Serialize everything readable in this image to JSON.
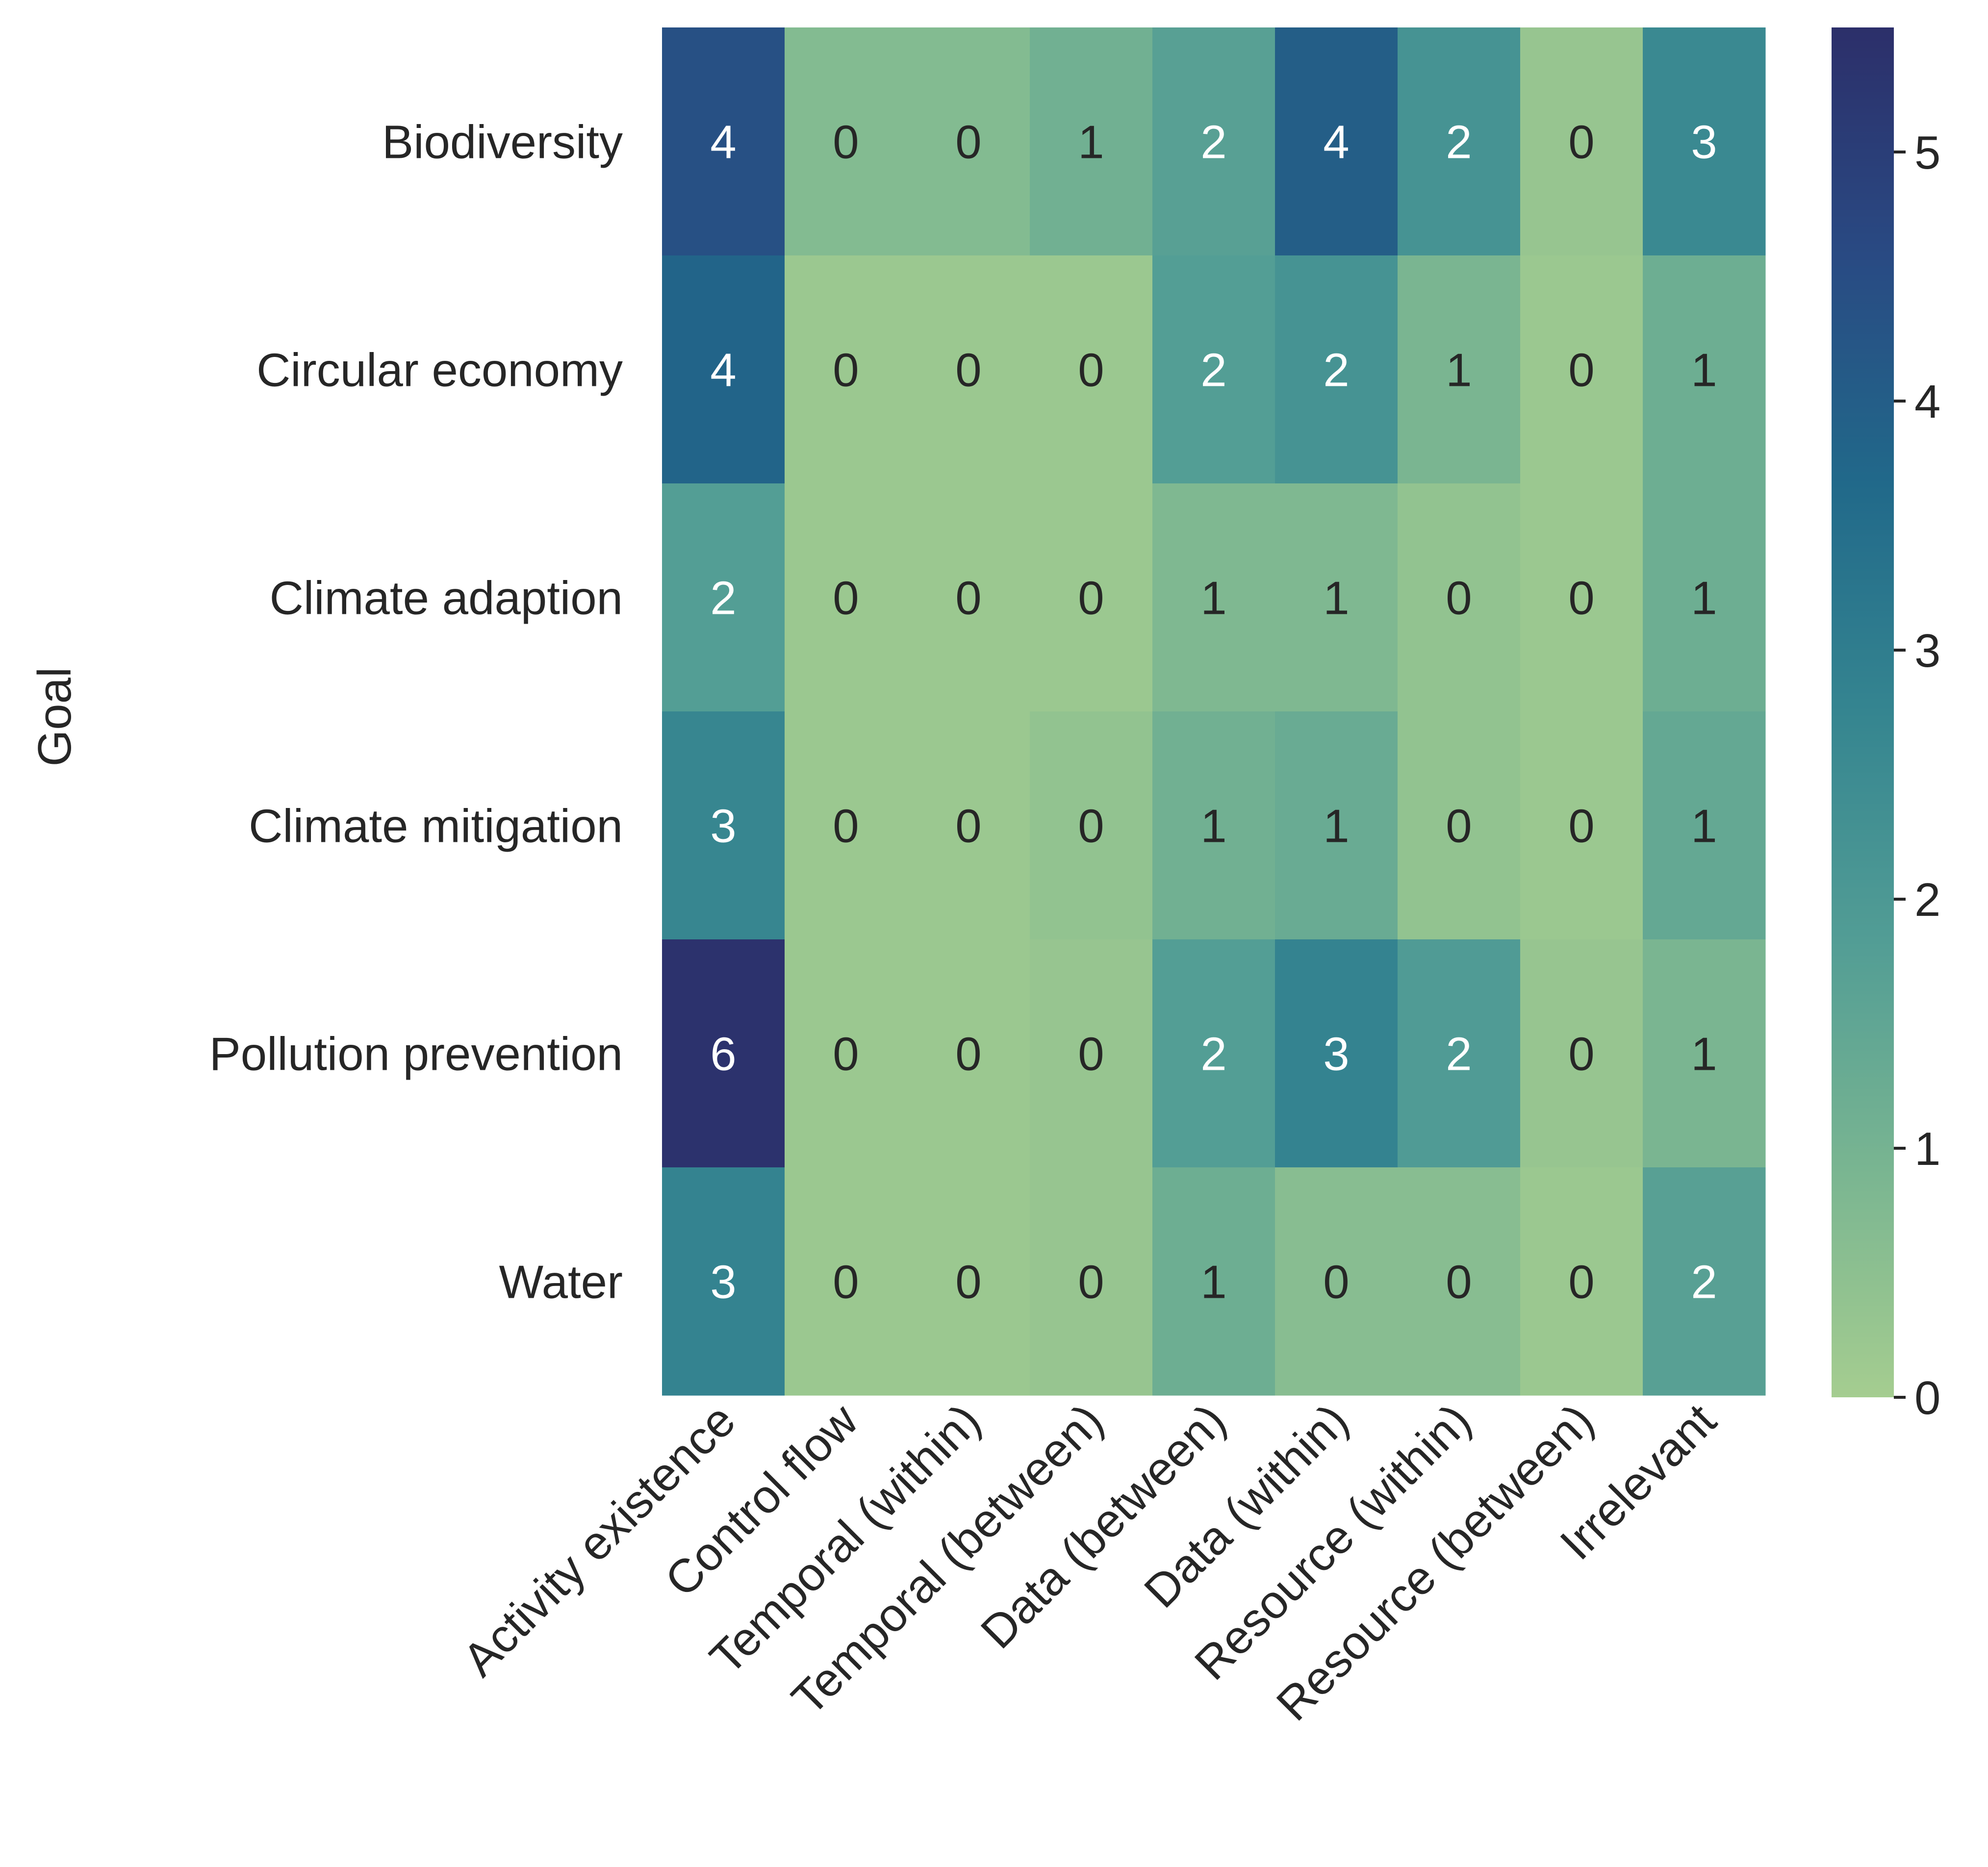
{
  "chart_data": {
    "type": "heatmap",
    "title": "",
    "xlabel": "",
    "ylabel": "Goal",
    "rows": [
      "Biodiversity",
      "Circular economy",
      "Climate adaption",
      "Climate mitigation",
      "Pollution prevention",
      "Water"
    ],
    "columns": [
      "Activity existence",
      "Control flow",
      "Temporal (within)",
      "Temporal (between)",
      "Data (between)",
      "Data (within)",
      "Resource (within)",
      "Resource (between)",
      "Irrelevant"
    ],
    "annotations": [
      [
        4,
        0,
        0,
        1,
        2,
        4,
        2,
        0,
        3
      ],
      [
        4,
        0,
        0,
        0,
        2,
        2,
        1,
        0,
        1
      ],
      [
        2,
        0,
        0,
        0,
        1,
        1,
        0,
        0,
        1
      ],
      [
        3,
        0,
        0,
        0,
        1,
        1,
        0,
        0,
        1
      ],
      [
        6,
        0,
        0,
        0,
        2,
        3,
        2,
        0,
        1
      ],
      [
        3,
        0,
        0,
        0,
        1,
        0,
        0,
        0,
        2
      ]
    ],
    "values": [
      [
        4.4,
        0.7,
        0.7,
        1.1,
        1.7,
        4.0,
        2.2,
        0.3,
        2.6
      ],
      [
        3.8,
        0.2,
        0.2,
        0.2,
        1.8,
        2.2,
        0.9,
        0.2,
        1.2
      ],
      [
        1.8,
        0.2,
        0.2,
        0.2,
        0.8,
        0.8,
        0.4,
        0.2,
        1.2
      ],
      [
        2.7,
        0.2,
        0.2,
        0.4,
        1.1,
        1.3,
        0.4,
        0.2,
        1.4
      ],
      [
        5.4,
        0.2,
        0.2,
        0.3,
        1.8,
        2.8,
        1.9,
        0.3,
        0.9
      ],
      [
        2.8,
        0.2,
        0.2,
        0.3,
        1.2,
        0.6,
        0.6,
        0.2,
        1.7
      ]
    ],
    "colorbar": {
      "min": 0,
      "max": 5.5,
      "ticks": [
        0,
        1,
        2,
        3,
        4,
        5
      ],
      "colormap": "crest",
      "stops": [
        "#a5cd90",
        "#79b591",
        "#529d95",
        "#358590",
        "#21698a",
        "#294a83",
        "#2c2f6a"
      ]
    },
    "annotation_colors": {
      "dark_text": "#262626",
      "light_text": "#ffffff"
    }
  }
}
